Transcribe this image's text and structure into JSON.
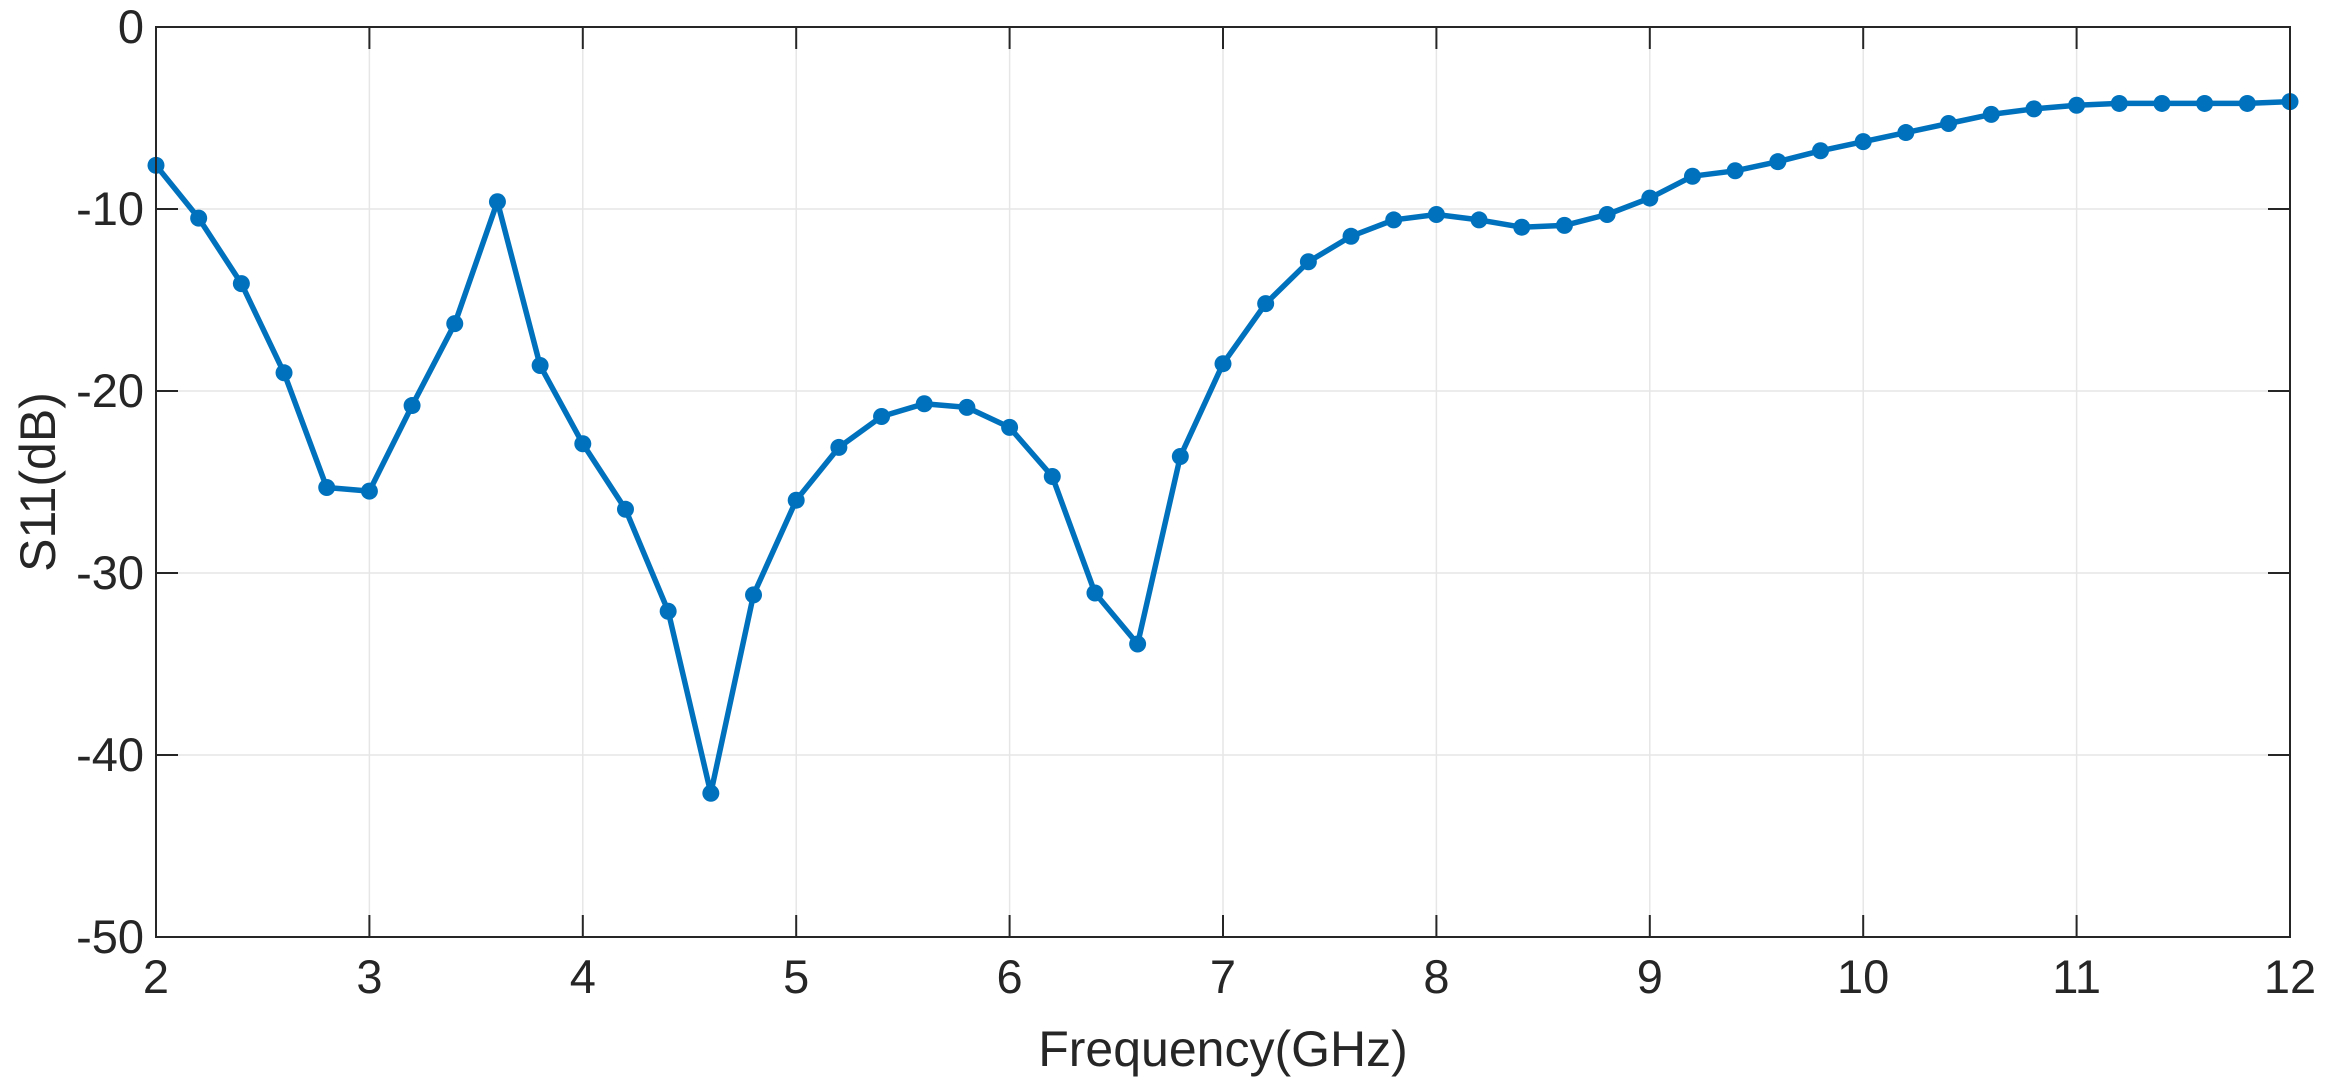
{
  "chart_data": {
    "type": "line",
    "xlabel": "Frequency(GHz)",
    "ylabel": "S11(dB)",
    "xlim": [
      2,
      12
    ],
    "ylim": [
      -50,
      0
    ],
    "x_ticks": [
      2,
      3,
      4,
      5,
      6,
      7,
      8,
      9,
      10,
      11,
      12
    ],
    "y_ticks": [
      0,
      -10,
      -20,
      -30,
      -40,
      -50
    ],
    "grid": true,
    "line_color": "#0072BD",
    "series": [
      {
        "marker": "circle",
        "x": [
          2.0,
          2.2,
          2.4,
          2.6,
          2.8,
          3.0,
          3.2,
          3.4,
          3.6,
          3.8,
          4.0,
          4.2,
          4.4,
          4.6,
          4.8,
          5.0,
          5.2,
          5.4,
          5.6,
          5.8,
          6.0,
          6.2,
          6.4,
          6.6,
          6.8,
          7.0,
          7.2,
          7.4,
          7.6,
          7.8,
          8.0,
          8.2,
          8.4,
          8.6,
          8.8,
          9.0,
          9.2,
          9.4,
          9.6,
          9.8,
          10.0,
          10.2,
          10.4,
          10.6,
          10.8,
          11.0,
          11.2,
          11.4,
          11.6,
          11.8,
          12.0
        ],
        "y": [
          -7.6,
          -10.5,
          -14.1,
          -19.0,
          -25.3,
          -25.5,
          -20.8,
          -16.3,
          -9.6,
          -18.6,
          -22.9,
          -26.5,
          -32.1,
          -42.1,
          -31.2,
          -26.0,
          -23.1,
          -21.4,
          -20.7,
          -20.9,
          -22.0,
          -24.7,
          -31.1,
          -33.9,
          -23.6,
          -18.5,
          -15.2,
          -12.9,
          -11.5,
          -10.6,
          -10.3,
          -10.6,
          -11.0,
          -10.9,
          -10.3,
          -9.4,
          -8.2,
          -7.9,
          -7.4,
          -6.8,
          -6.3,
          -5.8,
          -5.3,
          -4.8,
          -4.5,
          -4.3,
          -4.2,
          -4.2,
          -4.2,
          -4.2,
          -4.1
        ]
      }
    ]
  }
}
